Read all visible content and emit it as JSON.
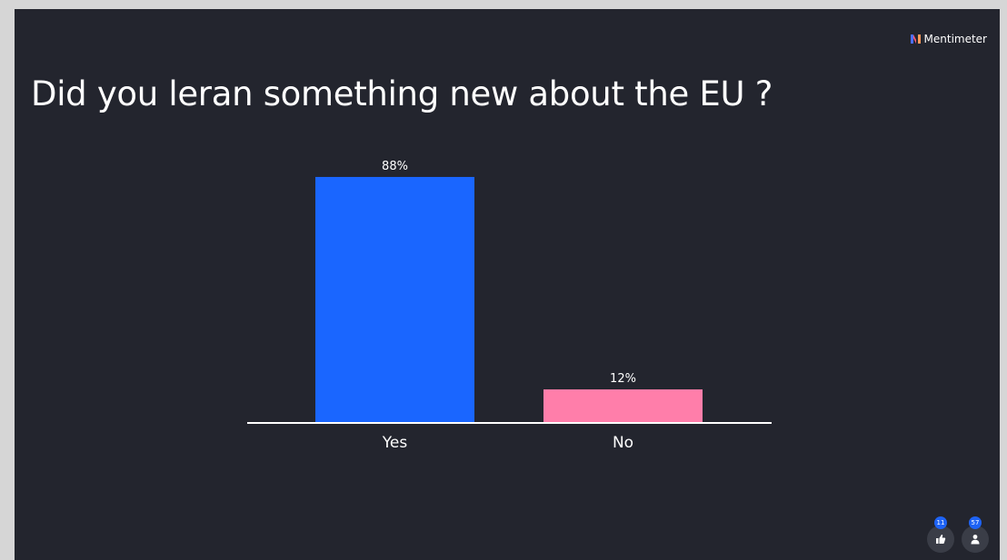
{
  "brand": {
    "name": "Mentimeter",
    "icon": "mentimeter-logo-icon"
  },
  "slide": {
    "question": "Did you leran something new about the EU ?"
  },
  "chart_data": {
    "type": "bar",
    "categories": [
      "Yes",
      "No"
    ],
    "values": [
      88,
      12
    ],
    "value_labels": [
      "88%",
      "12%"
    ],
    "colors": [
      "#1a66ff",
      "#ff7eaa"
    ],
    "ylim": [
      0,
      100
    ],
    "grid": false,
    "title": "",
    "xlabel": "",
    "ylabel": ""
  },
  "controls": {
    "reactions": {
      "icon": "thumbs-up-icon",
      "count": "11"
    },
    "participants": {
      "icon": "person-icon",
      "count": "57"
    }
  },
  "colors": {
    "background": "#23252e",
    "text": "#ffffff",
    "axis": "#ffffff"
  }
}
